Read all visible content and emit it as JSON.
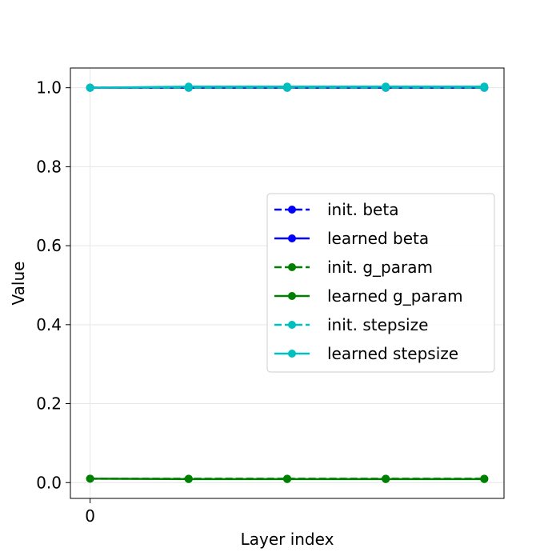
{
  "chart_data": {
    "type": "line",
    "title": "",
    "xlabel": "Layer index",
    "ylabel": "Value",
    "x": [
      0,
      1,
      2,
      3,
      4
    ],
    "x_ticks": [
      0
    ],
    "x_tick_labels": [
      "0"
    ],
    "xlim": [
      -0.2,
      4.2
    ],
    "ylim": [
      -0.04,
      1.05
    ],
    "y_ticks": [
      0.0,
      0.2,
      0.4,
      0.6,
      0.8,
      1.0
    ],
    "y_tick_labels": [
      "0.0",
      "0.2",
      "0.4",
      "0.6",
      "0.8",
      "1.0"
    ],
    "grid": true,
    "legend_position": "center-right",
    "series": [
      {
        "name": "init. beta",
        "color": "#0000ff",
        "dash": "dashed",
        "values": [
          1.0,
          1.0,
          1.0,
          1.0,
          1.0
        ]
      },
      {
        "name": "learned beta",
        "color": "#0000ff",
        "dash": "solid",
        "values": [
          1.0,
          1.0,
          1.0,
          1.0,
          1.0
        ]
      },
      {
        "name": "init. g_param",
        "color": "#008000",
        "dash": "dashed",
        "values": [
          0.01,
          0.01,
          0.01,
          0.01,
          0.01
        ]
      },
      {
        "name": "learned g_param",
        "color": "#008000",
        "dash": "solid",
        "values": [
          0.01,
          0.009,
          0.009,
          0.009,
          0.009
        ]
      },
      {
        "name": "init. stepsize",
        "color": "#00bfbf",
        "dash": "dashed",
        "values": [
          1.0,
          1.0,
          1.0,
          1.0,
          1.0
        ]
      },
      {
        "name": "learned stepsize",
        "color": "#00bfbf",
        "dash": "solid",
        "values": [
          1.0,
          1.003,
          1.003,
          1.003,
          1.003
        ]
      }
    ]
  }
}
